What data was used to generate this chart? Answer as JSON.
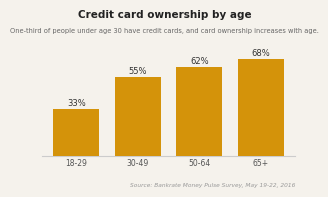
{
  "title": "Credit card ownership by age",
  "subtitle": "One-third of people under age 30 have credit cards, and card ownership increases with age.",
  "source": "Source: Bankrate Money Pulse Survey, May 19-22, 2016",
  "categories": [
    "18-29",
    "30-49",
    "50-64",
    "65+"
  ],
  "values": [
    33,
    55,
    62,
    68
  ],
  "bar_color": "#D4930A",
  "background_color": "#F5F2EC",
  "grid_color": "#DDDDDD",
  "title_fontsize": 7.5,
  "subtitle_fontsize": 4.8,
  "source_fontsize": 4.2,
  "label_fontsize": 6.0,
  "tick_fontsize": 5.5,
  "ylim": [
    0,
    78
  ],
  "bar_width": 0.75
}
